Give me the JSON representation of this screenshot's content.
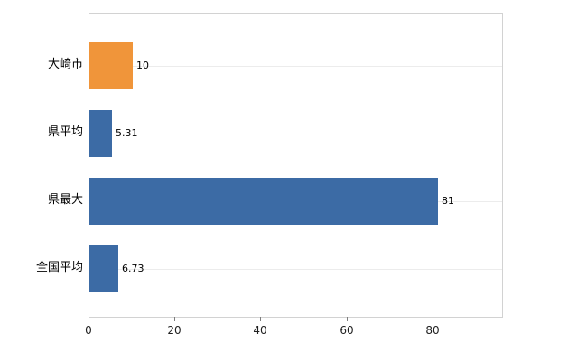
{
  "chart_data": {
    "type": "bar",
    "orientation": "horizontal",
    "title": "",
    "categories": [
      "大崎市",
      "県平均",
      "県最大",
      "全国平均"
    ],
    "values": [
      10,
      5.31,
      81,
      6.73
    ],
    "value_labels": [
      "10",
      "5.31",
      "81",
      "6.73"
    ],
    "colors": [
      "#f0953a",
      "#3c6ba5",
      "#3c6ba5",
      "#3c6ba5"
    ],
    "x_ticks": [
      "0",
      "20",
      "40",
      "60",
      "80"
    ],
    "x_tick_values": [
      0,
      20,
      40,
      60,
      80
    ],
    "xlim": [
      0,
      96
    ],
    "ylabel": "",
    "xlabel": "",
    "grid": "horizontal-light",
    "legend": "none"
  },
  "styles": {
    "background": "#ffffff",
    "plot_border": "#d2d2d2",
    "grid_color": "#ececec",
    "tick_color": "#7e7e7e",
    "label_color": "#000000",
    "orange": "#f0953a",
    "blue": "#3c6ba5"
  }
}
